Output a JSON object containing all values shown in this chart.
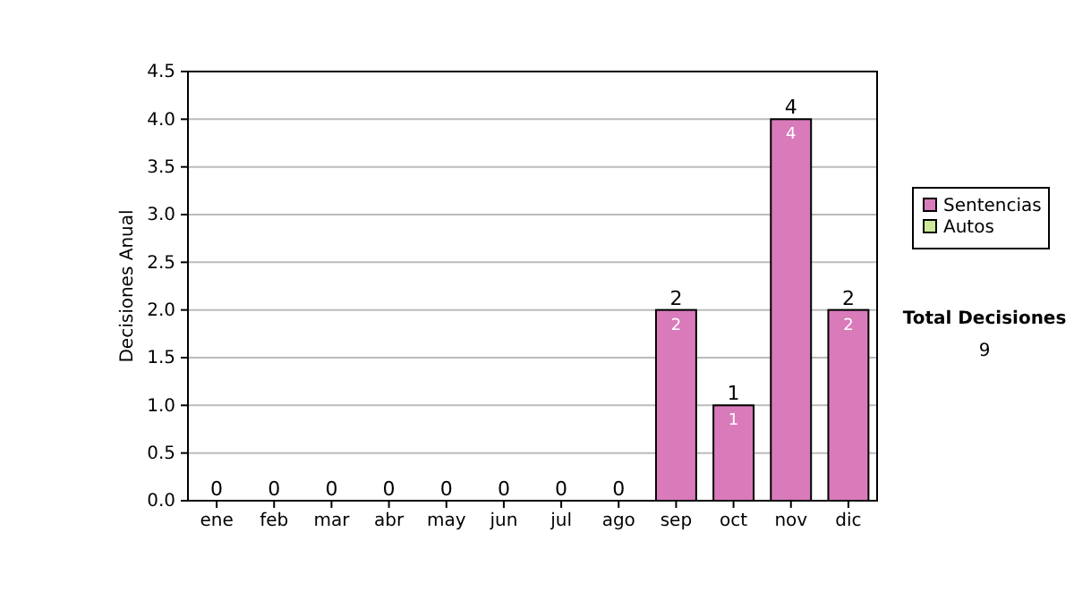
{
  "chart_data": {
    "type": "bar",
    "stacked": true,
    "ylabel": "Decisiones Anual",
    "categories": [
      "ene",
      "feb",
      "mar",
      "abr",
      "may",
      "jun",
      "jul",
      "ago",
      "sep",
      "oct",
      "nov",
      "dic"
    ],
    "series": [
      {
        "name": "Sentencias",
        "color": "#d97bbb",
        "values": [
          0,
          0,
          0,
          0,
          0,
          0,
          0,
          0,
          2,
          1,
          4,
          2
        ],
        "value_labels": [
          null,
          null,
          null,
          null,
          null,
          null,
          null,
          null,
          "2",
          "1",
          "4",
          "2"
        ]
      },
      {
        "name": "Autos",
        "color": "#cce899",
        "values": [
          0,
          0,
          0,
          0,
          0,
          0,
          0,
          0,
          0,
          0,
          0,
          0
        ]
      }
    ],
    "totals": [
      "0",
      "0",
      "0",
      "0",
      "0",
      "0",
      "0",
      "0",
      "2",
      "1",
      "4",
      "2"
    ],
    "ylim": [
      0,
      4.5
    ],
    "yticks": [
      {
        "value": 0,
        "label": "0.0"
      },
      {
        "value": 0.5,
        "label": "0.5"
      },
      {
        "value": 1,
        "label": "1.0"
      },
      {
        "value": 1.5,
        "label": "1.5"
      },
      {
        "value": 2,
        "label": "2.0"
      },
      {
        "value": 2.5,
        "label": "2.5"
      },
      {
        "value": 3,
        "label": "3.0"
      },
      {
        "value": 3.5,
        "label": "3.5"
      },
      {
        "value": 4,
        "label": "4.0"
      },
      {
        "value": 4.5,
        "label": "4.5"
      }
    ],
    "grid": "y",
    "legend": "right",
    "annotations": [
      "Total Decisiones",
      "9"
    ]
  }
}
